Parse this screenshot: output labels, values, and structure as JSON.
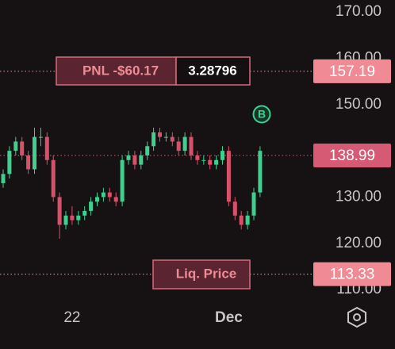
{
  "chart_data": {
    "type": "candlestick",
    "categories": [
      null,
      null,
      null,
      null,
      null,
      null,
      null,
      null,
      null,
      null,
      null,
      "22",
      null,
      null,
      null,
      null,
      null,
      null,
      null,
      null,
      null,
      null,
      null,
      null,
      null,
      null,
      null,
      null,
      null,
      null,
      null,
      null,
      null,
      null,
      null,
      null,
      "Dec",
      null,
      null,
      null,
      null,
      null
    ],
    "open": [
      133,
      135,
      140,
      142,
      139,
      136,
      143,
      143,
      138,
      130,
      124,
      126,
      125,
      126,
      127,
      129,
      130,
      131,
      130,
      129,
      138,
      139,
      137,
      139,
      141,
      144,
      143,
      143,
      142,
      140,
      143,
      139,
      138,
      138,
      137,
      138,
      140,
      129,
      126,
      124,
      126,
      131
    ],
    "high": [
      136,
      141,
      143,
      143,
      140,
      145,
      145,
      144,
      139,
      131,
      127,
      128,
      127,
      128,
      130,
      131,
      132,
      132,
      131,
      139,
      140,
      140,
      140,
      142,
      145,
      145,
      144,
      144,
      143,
      144,
      144,
      140,
      139,
      139,
      139,
      141,
      141,
      130,
      127,
      127,
      132,
      141
    ],
    "low": [
      132,
      134,
      139,
      138,
      135,
      135,
      141,
      137,
      129,
      121,
      123,
      124,
      124,
      125,
      126,
      128,
      129,
      129,
      128,
      128,
      137,
      136,
      136,
      138,
      140,
      142,
      142,
      141,
      139,
      139,
      138,
      137,
      137,
      136,
      136,
      137,
      128,
      125,
      123,
      123,
      125,
      130
    ],
    "close": [
      135,
      140,
      142,
      139,
      136,
      143,
      143,
      138,
      130,
      124,
      126,
      125,
      126,
      127,
      129,
      130,
      131,
      130,
      129,
      138,
      139,
      137,
      139,
      141,
      144,
      143,
      143,
      142,
      140,
      143,
      139,
      138,
      138,
      137,
      138,
      140,
      129,
      126,
      124,
      126,
      131,
      140
    ],
    "up_color": "#3fcf8e",
    "down_color": "#d9506a",
    "ylim": [
      108.3,
      172.6
    ],
    "yticks": [
      {
        "value": 110,
        "label": "110.00"
      },
      {
        "value": 120,
        "label": "120.00"
      },
      {
        "value": 130,
        "label": "130.00"
      },
      {
        "value": 140,
        "label": "140.00"
      },
      {
        "value": 150,
        "label": "150.00"
      },
      {
        "value": 160,
        "label": "160.00"
      },
      {
        "value": 170,
        "label": "170.00"
      }
    ],
    "price_lines": [
      {
        "value": 157.19,
        "color": "#f08a95"
      },
      {
        "value": 138.99,
        "color": "#d65a74"
      },
      {
        "value": 113.33,
        "color": "#f08a95"
      }
    ]
  },
  "pnl": {
    "label": "PNL -$60.17",
    "value": 3.28796
  },
  "liq_label": "Liq. Price",
  "marker": "B"
}
